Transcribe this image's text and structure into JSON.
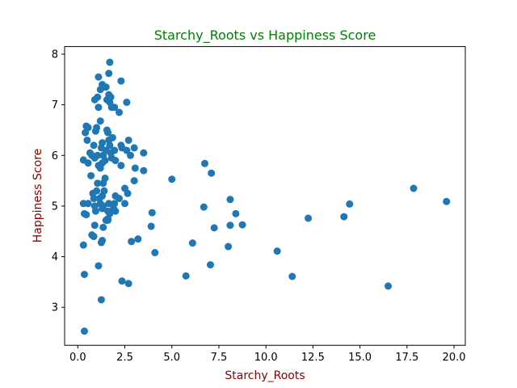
{
  "chart_data": {
    "type": "scatter",
    "title": "Starchy_Roots vs Happiness Score",
    "xlabel": "Starchy_Roots",
    "ylabel": "Happiness Score",
    "xlim": [
      -0.7,
      20.6
    ],
    "ylim": [
      2.25,
      8.15
    ],
    "xticks": [
      0.0,
      2.5,
      5.0,
      7.5,
      10.0,
      12.5,
      15.0,
      17.5,
      20.0
    ],
    "xtick_labels": [
      "0.0",
      "2.5",
      "5.0",
      "7.5",
      "10.0",
      "12.5",
      "15.0",
      "17.5",
      "20.0"
    ],
    "yticks": [
      3,
      4,
      5,
      6,
      7,
      8
    ],
    "ytick_labels": [
      "3",
      "4",
      "5",
      "6",
      "7",
      "8"
    ],
    "grid": false,
    "colors": {
      "title": "#008000",
      "axis_label": "#8b0000",
      "marker": "#1f77b4"
    },
    "points": [
      [
        0.35,
        2.53
      ],
      [
        0.35,
        3.65
      ],
      [
        0.3,
        4.23
      ],
      [
        0.35,
        4.85
      ],
      [
        0.45,
        4.83
      ],
      [
        0.3,
        5.05
      ],
      [
        0.55,
        5.05
      ],
      [
        0.3,
        5.91
      ],
      [
        0.55,
        5.85
      ],
      [
        0.7,
        5.6
      ],
      [
        0.8,
        5.25
      ],
      [
        0.85,
        5.15
      ],
      [
        0.9,
        4.62
      ],
      [
        0.75,
        4.43
      ],
      [
        0.85,
        4.4
      ],
      [
        0.9,
        5.0
      ],
      [
        0.95,
        4.9
      ],
      [
        1.0,
        5.3
      ],
      [
        1.05,
        5.45
      ],
      [
        1.1,
        3.82
      ],
      [
        1.25,
        4.28
      ],
      [
        1.3,
        4.32
      ],
      [
        1.35,
        4.58
      ],
      [
        1.25,
        3.15
      ],
      [
        1.3,
        4.95
      ],
      [
        1.35,
        5.0
      ],
      [
        1.2,
        5.05
      ],
      [
        1.15,
        5.15
      ],
      [
        1.3,
        5.2
      ],
      [
        1.4,
        5.3
      ],
      [
        1.35,
        5.45
      ],
      [
        1.45,
        5.55
      ],
      [
        1.5,
        4.72
      ],
      [
        1.6,
        4.75
      ],
      [
        1.6,
        4.9
      ],
      [
        1.65,
        5.05
      ],
      [
        1.7,
        4.85
      ],
      [
        1.9,
        4.95
      ],
      [
        2.0,
        4.9
      ],
      [
        1.95,
        5.05
      ],
      [
        2.2,
        5.15
      ],
      [
        2.5,
        5.05
      ],
      [
        2.5,
        5.35
      ],
      [
        2.65,
        5.25
      ],
      [
        0.4,
        6.45
      ],
      [
        0.45,
        6.58
      ],
      [
        0.55,
        6.55
      ],
      [
        0.5,
        6.3
      ],
      [
        0.65,
        6.05
      ],
      [
        0.75,
        6.0
      ],
      [
        0.85,
        6.2
      ],
      [
        0.95,
        6.48
      ],
      [
        0.9,
        5.95
      ],
      [
        1.05,
        6.0
      ],
      [
        1.1,
        5.8
      ],
      [
        1.2,
        5.75
      ],
      [
        1.25,
        6.15
      ],
      [
        1.3,
        6.25
      ],
      [
        1.35,
        6.0
      ],
      [
        1.3,
        5.85
      ],
      [
        1.45,
        5.9
      ],
      [
        1.5,
        6.1
      ],
      [
        1.55,
        6.5
      ],
      [
        1.6,
        6.45
      ],
      [
        1.65,
        6.3
      ],
      [
        1.7,
        6.2
      ],
      [
        1.75,
        6.05
      ],
      [
        1.8,
        5.95
      ],
      [
        1.85,
        6.35
      ],
      [
        1.95,
        6.1
      ],
      [
        2.0,
        5.9
      ],
      [
        2.3,
        6.2
      ],
      [
        2.35,
        6.15
      ],
      [
        2.3,
        5.8
      ],
      [
        2.6,
        6.1
      ],
      [
        2.7,
        6.3
      ],
      [
        2.8,
        6.0
      ],
      [
        3.0,
        6.15
      ],
      [
        3.05,
        5.75
      ],
      [
        3.5,
        6.05
      ],
      [
        3.5,
        5.7
      ],
      [
        3.0,
        5.5
      ],
      [
        1.0,
        6.55
      ],
      [
        1.1,
        6.95
      ],
      [
        0.9,
        7.1
      ],
      [
        1.05,
        7.15
      ],
      [
        1.2,
        7.3
      ],
      [
        1.3,
        7.4
      ],
      [
        1.35,
        7.35
      ],
      [
        1.5,
        7.35
      ],
      [
        1.55,
        7.1
      ],
      [
        1.65,
        7.2
      ],
      [
        1.7,
        7.05
      ],
      [
        1.75,
        7.15
      ],
      [
        1.8,
        6.95
      ],
      [
        1.1,
        7.55
      ],
      [
        1.65,
        7.62
      ],
      [
        1.7,
        7.84
      ],
      [
        2.3,
        7.47
      ],
      [
        2.6,
        7.05
      ],
      [
        2.2,
        6.85
      ],
      [
        1.95,
        6.95
      ],
      [
        2.0,
        5.2
      ],
      [
        1.2,
        6.68
      ],
      [
        1.6,
        4.72
      ],
      [
        2.35,
        3.52
      ],
      [
        2.7,
        3.47
      ],
      [
        2.85,
        4.3
      ],
      [
        3.2,
        4.35
      ],
      [
        3.9,
        4.6
      ],
      [
        3.95,
        4.87
      ],
      [
        4.1,
        4.08
      ],
      [
        5.0,
        5.53
      ],
      [
        5.75,
        3.62
      ],
      [
        6.1,
        4.27
      ],
      [
        6.7,
        4.98
      ],
      [
        6.75,
        5.84
      ],
      [
        7.05,
        3.84
      ],
      [
        7.1,
        5.65
      ],
      [
        7.25,
        4.57
      ],
      [
        8.0,
        4.2
      ],
      [
        8.1,
        5.13
      ],
      [
        8.1,
        4.62
      ],
      [
        8.4,
        4.85
      ],
      [
        8.75,
        4.63
      ],
      [
        10.6,
        4.11
      ],
      [
        11.4,
        3.61
      ],
      [
        12.25,
        4.76
      ],
      [
        14.15,
        4.79
      ],
      [
        14.45,
        5.04
      ],
      [
        16.5,
        3.42
      ],
      [
        17.85,
        5.35
      ],
      [
        19.6,
        5.09
      ]
    ]
  }
}
